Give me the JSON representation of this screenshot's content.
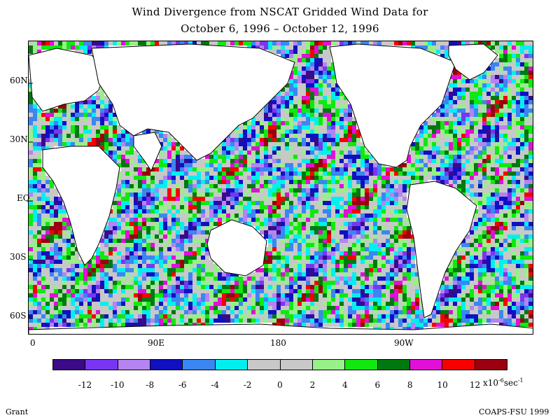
{
  "title": {
    "line1": "Wind Divergence from NSCAT Gridded Wind Data for",
    "line2": "October 6, 1996 – October 12, 1996"
  },
  "map": {
    "lat_labels": [
      "60N",
      "30N",
      "EQ",
      "30S",
      "60S"
    ],
    "lon_labels": [
      "0",
      "90E",
      "180",
      "90W"
    ]
  },
  "colorbar": {
    "colors": [
      "#3b0a86",
      "#7a35f2",
      "#b583f2",
      "#1010c0",
      "#3a86f2",
      "#00f0f0",
      "#c8c8c8",
      "#c8c8c8",
      "#98f088",
      "#10e810",
      "#007810",
      "#e010d8",
      "#f80000",
      "#9a0010"
    ],
    "tick_labels": [
      "-12",
      "-10",
      "-8",
      "-6",
      "-4",
      "-2",
      "0",
      "2",
      "4",
      "6",
      "8",
      "10",
      "12"
    ],
    "units_prefix": "x10",
    "units_exp": "-6",
    "units_suffix": "sec",
    "units_exp2": "-1"
  },
  "footer": {
    "left": "Grant",
    "right": "COAPS-FSU 1999"
  }
}
